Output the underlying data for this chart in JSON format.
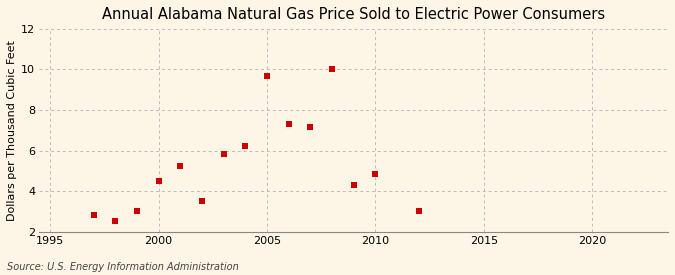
{
  "title": "Annual Alabama Natural Gas Price Sold to Electric Power Consumers",
  "ylabel": "Dollars per Thousand Cubic Feet",
  "source": "Source: U.S. Energy Information Administration",
  "background_color": "#fdf5e6",
  "plot_bg_color": "#fdf5e6",
  "data_points": [
    [
      1997,
      2.82
    ],
    [
      1998,
      2.52
    ],
    [
      1999,
      3.02
    ],
    [
      2000,
      4.5
    ],
    [
      2001,
      5.22
    ],
    [
      2002,
      3.5
    ],
    [
      2003,
      5.82
    ],
    [
      2004,
      6.22
    ],
    [
      2005,
      9.68
    ],
    [
      2006,
      7.32
    ],
    [
      2007,
      7.18
    ],
    [
      2008,
      10.02
    ],
    [
      2009,
      4.32
    ],
    [
      2010,
      4.85
    ],
    [
      2012,
      3.02
    ]
  ],
  "marker_color": "#cc0000",
  "marker_size": 18,
  "marker_style": "s",
  "xlim": [
    1994.5,
    2023.5
  ],
  "ylim": [
    2,
    12
  ],
  "xticks": [
    1995,
    2000,
    2005,
    2010,
    2015,
    2020
  ],
  "yticks": [
    2,
    4,
    6,
    8,
    10,
    12
  ],
  "grid_color": "#bbbbbb",
  "title_fontsize": 10.5,
  "label_fontsize": 8,
  "tick_fontsize": 8,
  "source_fontsize": 7
}
